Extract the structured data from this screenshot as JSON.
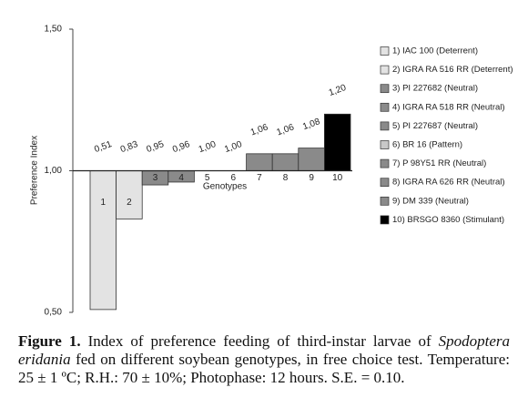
{
  "chart_data": {
    "type": "bar",
    "y_label": "Preference Index",
    "x_label": "Genotypes",
    "categories": [
      "1",
      "2",
      "3",
      "4",
      "5",
      "6",
      "7",
      "8",
      "9",
      "10"
    ],
    "values": [
      0.51,
      0.83,
      0.95,
      0.96,
      1.0,
      1.0,
      1.06,
      1.06,
      1.08,
      1.2
    ],
    "value_labels": [
      "0,51",
      "0,83",
      "0,95",
      "0,96",
      "1,00",
      "1,00",
      "1,06",
      "1,06",
      "1,08",
      "1,20"
    ],
    "colors": [
      "#e3e3e3",
      "#e3e3e3",
      "#8a8a8a",
      "#8a8a8a",
      "#8a8a8a",
      "#c8c8c8",
      "#8a8a8a",
      "#8a8a8a",
      "#8a8a8a",
      "#000000"
    ],
    "legend": [
      "1) IAC 100 (Deterrent)",
      "2) IGRA RA 516 RR (Deterrent)",
      "3) PI 227682 (Neutral)",
      "4) IGRA RA 518 RR (Neutral)",
      "5) PI 227687 (Neutral)",
      "6) BR 16 (Pattern)",
      "7) P 98Y51 RR (Neutral)",
      "8) IGRA RA 626 RR (Neutral)",
      "9) DM 339 (Neutral)",
      "10) BRSGO 8360 (Stimulant)"
    ],
    "baseline": 1.0,
    "ylim": [
      0.5,
      1.5
    ],
    "yticks": [
      {
        "value": 0.5,
        "label": "0,50"
      },
      {
        "value": 1.0,
        "label": "1,00"
      },
      {
        "value": 1.5,
        "label": "1,50"
      }
    ]
  },
  "caption": {
    "label": "Figure 1.",
    "text_before": "Index of preference feeding of third-instar larvae of",
    "species": "Spodoptera eridania",
    "text_after": "fed on different soybean genotypes, in free choice test. Temperature: 25 ± 1 ºC; R.H.: 70 ± 10%; Photophase: 12 hours. S.E. = 0.10."
  }
}
